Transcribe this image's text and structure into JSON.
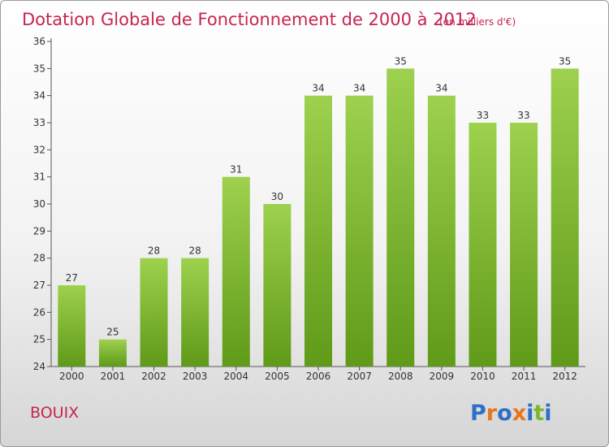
{
  "chart_data": {
    "type": "bar",
    "title": "Dotation Globale de Fonctionnement de 2000 à 2012",
    "subtitle": "(en milliers d'€)",
    "xlabel": "",
    "ylabel": "",
    "categories": [
      "2000",
      "2001",
      "2002",
      "2003",
      "2004",
      "2005",
      "2006",
      "2007",
      "2008",
      "2009",
      "2010",
      "2011",
      "2012"
    ],
    "values": [
      27,
      25,
      28,
      28,
      31,
      30,
      34,
      34,
      35,
      34,
      33,
      33,
      35
    ],
    "data_labels": [
      "27",
      "25",
      "28",
      "28",
      "31",
      "30",
      "34",
      "34",
      "35",
      "34",
      "33",
      "33",
      "35"
    ],
    "ylim": [
      24,
      36
    ],
    "yticks": [
      "24",
      "25",
      "26",
      "27",
      "28",
      "29",
      "30",
      "31",
      "32",
      "33",
      "34",
      "35",
      "36"
    ],
    "grid": false,
    "legend": "none",
    "bar_color_top": "#9dd14e",
    "bar_color_bottom": "#5f9a18"
  },
  "commune": "BOUIX",
  "logo": {
    "text": "Proxiti",
    "letters": [
      {
        "char": "P",
        "color": "#2e6fc7"
      },
      {
        "char": "r",
        "color": "#e8751a"
      },
      {
        "char": "o",
        "color": "#2e6fc7"
      },
      {
        "char": "x",
        "color": "#e8751a"
      },
      {
        "char": "i",
        "color": "#2e6fc7"
      },
      {
        "char": "t",
        "color": "#7cb82f"
      },
      {
        "char": "i",
        "color": "#2e6fc7"
      }
    ]
  }
}
